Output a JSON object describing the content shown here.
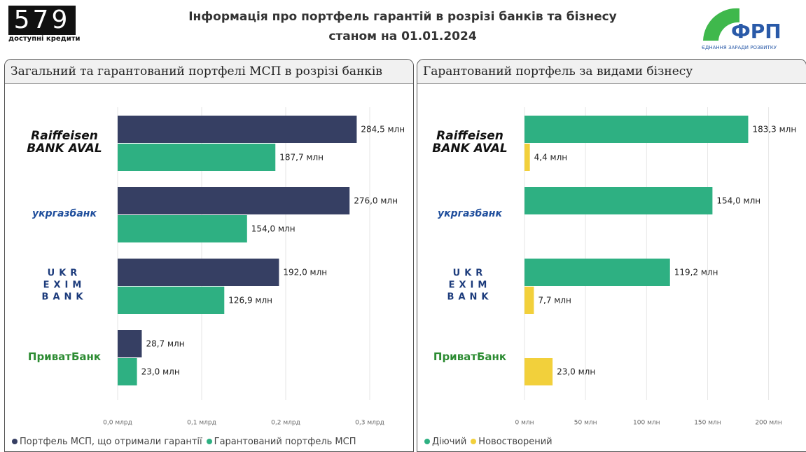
{
  "header": {
    "title": "Інформація про портфель гарантій в розрізі банків та бізнесу",
    "subtitle": "станом на 01.01.2024",
    "left_logo": {
      "text": "579",
      "caption": "доступні кредити"
    },
    "right_logo": {
      "text": "ФРП",
      "caption": "ЄДНАННЯ ЗАРАДИ РОЗВИТКУ"
    }
  },
  "chart_data": [
    {
      "type": "hbar",
      "title": "Загальний та гарантований портфелі МСП в розрізі банків",
      "categories": [
        "Raiffeisen\nBANK AVAL",
        "укргазбанк",
        "UKR\nEXIM\nBANK",
        "ПриватБанк"
      ],
      "series": [
        {
          "name": "Портфель МСП, що отримали гарантії",
          "color": "#363f63",
          "values": [
            0.2845,
            0.276,
            0.192,
            0.0287
          ],
          "value_labels": [
            "284,5 млн",
            "276,0 млн",
            "192,0 млн",
            "28,7 млн"
          ]
        },
        {
          "name": "Гарантований портфель МСП",
          "color": "#2eb082",
          "values": [
            0.1877,
            0.154,
            0.1269,
            0.023
          ],
          "value_labels": [
            "187,7 млн",
            "154,0 млн",
            "126,9 млн",
            "23,0 млн"
          ]
        }
      ],
      "xlim": [
        0,
        0.32
      ],
      "xticks": [
        {
          "value": 0,
          "label": "0,0 млрд"
        },
        {
          "value": 0.1,
          "label": "0,1 млрд"
        },
        {
          "value": 0.2,
          "label": "0,2 млрд"
        },
        {
          "value": 0.3,
          "label": "0,3 млрд"
        }
      ],
      "grid": true,
      "legend": "bottom-left"
    },
    {
      "type": "hbar",
      "title": "Гарантований портфель за видами бізнесу",
      "categories": [
        "Raiffeisen\nBANK AVAL",
        "укргазбанк",
        "UKR\nEXIM\nBANK",
        "ПриватБанк"
      ],
      "series": [
        {
          "name": "Діючий",
          "color": "#2eb082",
          "values": [
            183.3,
            154.0,
            119.2,
            null
          ],
          "value_labels": [
            "183,3 млн",
            "154,0 млн",
            "119,2 млн",
            null
          ]
        },
        {
          "name": "Новостворений",
          "color": "#f2d03b",
          "values": [
            4.4,
            null,
            7.7,
            23.0
          ],
          "value_labels": [
            "4,4 млн",
            null,
            "7,7 млн",
            "23,0 млн"
          ]
        }
      ],
      "xlim": [
        0,
        210
      ],
      "xticks": [
        {
          "value": 0,
          "label": "0 млн"
        },
        {
          "value": 50,
          "label": "50 млн"
        },
        {
          "value": 100,
          "label": "100 млн"
        },
        {
          "value": 150,
          "label": "150 млн"
        },
        {
          "value": 200,
          "label": "200 млн"
        }
      ],
      "grid": true,
      "legend": "bottom-left"
    }
  ]
}
